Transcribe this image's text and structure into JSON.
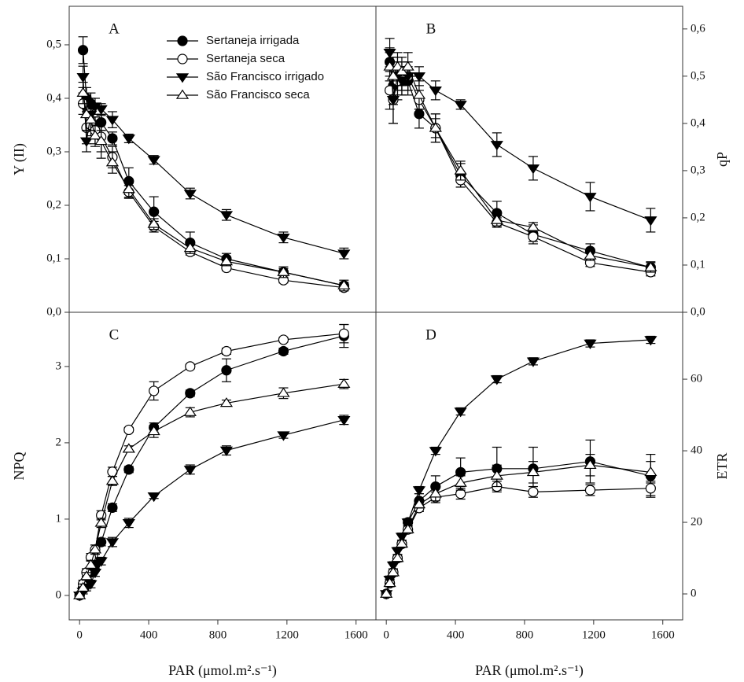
{
  "chart_data": [
    {
      "type": "line",
      "panel_label": "A",
      "ylabel": "Y (II)",
      "yaxis": "left",
      "legend": true,
      "x": [
        20,
        40,
        65,
        90,
        125,
        190,
        285,
        430,
        640,
        850,
        1180,
        1530
      ],
      "xlim": [
        -60,
        1715
      ],
      "ylim": [
        0,
        0.572
      ],
      "yticks": [
        {
          "value": 0,
          "label": "0,0"
        },
        {
          "value": 0.1,
          "label": "0,1"
        },
        {
          "value": 0.2,
          "label": "0,2"
        },
        {
          "value": 0.3,
          "label": "0,3"
        },
        {
          "value": 0.4,
          "label": "0,4"
        },
        {
          "value": 0.5,
          "label": "0,5"
        }
      ],
      "series": [
        {
          "name": "Sertaneja irrigada",
          "color": "#000000",
          "marker": "filled-circle",
          "values": [
            0.49,
            0.4,
            0.39,
            0.35,
            0.355,
            0.325,
            0.245,
            0.188,
            0.13,
            0.1,
            0.075,
            0.05
          ],
          "errors": [
            0.025,
            0.02,
            0.02,
            0.015,
            0.015,
            0.012,
            0.025,
            0.028,
            0.02,
            0.01,
            0.007,
            0.006
          ]
        },
        {
          "name": "Sertaneja seca",
          "color": "#000000",
          "marker": "open-circle",
          "values": [
            0.39,
            0.345,
            0.35,
            0.34,
            0.328,
            0.29,
            0.225,
            0.16,
            0.113,
            0.083,
            0.06,
            0.046
          ],
          "errors": [
            0.02,
            0.03,
            0.02,
            0.025,
            0.04,
            0.02,
            0.012,
            0.01,
            0.006,
            0.005,
            0.005,
            0.005
          ]
        },
        {
          "name": "São Francisco irrigado",
          "color": "#000000",
          "marker": "filled-down",
          "values": [
            0.44,
            0.32,
            0.37,
            0.385,
            0.38,
            0.36,
            0.325,
            0.285,
            0.222,
            0.182,
            0.14,
            0.11
          ],
          "errors": [
            0.02,
            0.02,
            0.03,
            0.015,
            0.01,
            0.015,
            0.008,
            0.008,
            0.01,
            0.01,
            0.01,
            0.01
          ]
        },
        {
          "name": "São Francisco seca",
          "color": "#000000",
          "marker": "open-up",
          "values": [
            0.41,
            0.37,
            0.36,
            0.33,
            0.32,
            0.28,
            0.23,
            0.165,
            0.12,
            0.095,
            0.075,
            0.05
          ],
          "errors": [
            0.02,
            0.03,
            0.02,
            0.02,
            0.02,
            0.02,
            0.015,
            0.01,
            0.01,
            0.008,
            0.01,
            0.01
          ]
        }
      ]
    },
    {
      "type": "line",
      "panel_label": "B",
      "ylabel": "qP",
      "yaxis": "right",
      "x": [
        20,
        40,
        65,
        90,
        125,
        190,
        285,
        430,
        640,
        850,
        1180,
        1530
      ],
      "xlim": [
        -60,
        1715
      ],
      "ylim": [
        0,
        0.648
      ],
      "yticks": [
        {
          "value": 0,
          "label": "0,0"
        },
        {
          "value": 0.1,
          "label": "0,1"
        },
        {
          "value": 0.2,
          "label": "0,2"
        },
        {
          "value": 0.3,
          "label": "0,3"
        },
        {
          "value": 0.4,
          "label": "0,4"
        },
        {
          "value": 0.5,
          "label": "0,5"
        },
        {
          "value": 0.6,
          "label": "0,6"
        }
      ],
      "series": [
        {
          "color": "#000000",
          "marker": "filled-circle",
          "values": [
            0.53,
            0.48,
            0.5,
            0.49,
            0.49,
            0.42,
            0.39,
            0.29,
            0.21,
            0.165,
            0.13,
            0.095
          ],
          "errors": [
            0.03,
            0.04,
            0.03,
            0.03,
            0.03,
            0.03,
            0.03,
            0.025,
            0.025,
            0.02,
            0.015,
            0.012
          ]
        },
        {
          "color": "#000000",
          "marker": "open-circle",
          "values": [
            0.47,
            0.45,
            0.49,
            0.5,
            0.5,
            0.45,
            0.39,
            0.28,
            0.19,
            0.16,
            0.105,
            0.085
          ],
          "errors": [
            0.04,
            0.05,
            0.04,
            0.03,
            0.03,
            0.02,
            0.02,
            0.015,
            0.01,
            0.01,
            0.008,
            0.008
          ]
        },
        {
          "color": "#000000",
          "marker": "filled-down",
          "values": [
            0.55,
            0.45,
            0.5,
            0.49,
            0.5,
            0.5,
            0.47,
            0.44,
            0.355,
            0.305,
            0.245,
            0.195
          ],
          "errors": [
            0.03,
            0.05,
            0.04,
            0.03,
            0.03,
            0.02,
            0.02,
            0.01,
            0.025,
            0.025,
            0.03,
            0.025
          ]
        },
        {
          "color": "#000000",
          "marker": "open-up",
          "values": [
            0.52,
            0.5,
            0.52,
            0.51,
            0.52,
            0.46,
            0.39,
            0.3,
            0.195,
            0.18,
            0.12,
            0.095
          ],
          "errors": [
            0.03,
            0.04,
            0.03,
            0.03,
            0.03,
            0.03,
            0.03,
            0.02,
            0.012,
            0.01,
            0.01,
            0.01
          ]
        }
      ]
    },
    {
      "type": "line",
      "panel_label": "C",
      "ylabel": "NPQ",
      "yaxis": "left",
      "xlabel": "PAR (μmol.m².s⁻¹)",
      "x": [
        0,
        20,
        40,
        65,
        90,
        125,
        190,
        285,
        430,
        640,
        850,
        1180,
        1530
      ],
      "xlim": [
        -60,
        1715
      ],
      "xticks": [
        0,
        400,
        800,
        1200,
        1600
      ],
      "ylim": [
        -0.32,
        3.71
      ],
      "yticks": [
        0,
        1,
        2,
        3
      ],
      "series": [
        {
          "color": "#000000",
          "marker": "filled-circle",
          "values": [
            0,
            0.1,
            0.2,
            0.3,
            0.4,
            0.7,
            1.15,
            1.65,
            2.2,
            2.65,
            2.95,
            3.2,
            3.4
          ],
          "errors": [
            0.02,
            0.03,
            0.04,
            0.05,
            0.05,
            0.05,
            0.05,
            0.04,
            0.06,
            0.04,
            0.15,
            0.04,
            0.15
          ]
        },
        {
          "color": "#000000",
          "marker": "open-circle",
          "values": [
            0,
            0.15,
            0.3,
            0.5,
            0.6,
            1.05,
            1.62,
            2.17,
            2.68,
            3.0,
            3.2,
            3.35,
            3.43
          ],
          "errors": [
            0.02,
            0.05,
            0.05,
            0.05,
            0.06,
            0.06,
            0.06,
            0.03,
            0.12,
            0.03,
            0.04,
            0.03,
            0.12
          ]
        },
        {
          "color": "#000000",
          "marker": "filled-down",
          "values": [
            0,
            0.05,
            0.1,
            0.15,
            0.3,
            0.45,
            0.7,
            0.95,
            1.3,
            1.65,
            1.9,
            2.1,
            2.3
          ],
          "errors": [
            0.02,
            0.03,
            0.04,
            0.05,
            0.05,
            0.05,
            0.06,
            0.06,
            0.03,
            0.06,
            0.06,
            0.04,
            0.06
          ]
        },
        {
          "color": "#000000",
          "marker": "open-up",
          "values": [
            0,
            0.1,
            0.25,
            0.4,
            0.6,
            0.95,
            1.5,
            1.92,
            2.15,
            2.4,
            2.52,
            2.65,
            2.77
          ],
          "errors": [
            0.02,
            0.05,
            0.05,
            0.06,
            0.06,
            0.06,
            0.06,
            0.04,
            0.08,
            0.06,
            0.04,
            0.07,
            0.06
          ]
        }
      ]
    },
    {
      "type": "line",
      "panel_label": "D",
      "ylabel": "ETR",
      "yaxis": "right",
      "xlabel": "PAR (μmol.m².s⁻¹)",
      "x": [
        0,
        20,
        40,
        65,
        90,
        125,
        190,
        285,
        430,
        640,
        850,
        1180,
        1530
      ],
      "xlim": [
        -60,
        1715
      ],
      "xticks": [
        0,
        400,
        800,
        1200,
        1600
      ],
      "ylim": [
        -7.25,
        78.7
      ],
      "yticks": [
        0,
        20,
        40,
        60
      ],
      "series": [
        {
          "color": "#000000",
          "marker": "filled-circle",
          "values": [
            0,
            3,
            6,
            10,
            14,
            20,
            26,
            30,
            34,
            35,
            35,
            37,
            33
          ],
          "errors": [
            0.5,
            1,
            1,
            1,
            1,
            1,
            2,
            3,
            4,
            6,
            6,
            6,
            6
          ]
        },
        {
          "color": "#000000",
          "marker": "open-circle",
          "values": [
            0,
            3,
            6,
            10,
            14,
            18,
            24,
            27,
            28,
            30,
            28.5,
            29,
            29.5
          ],
          "errors": [
            0.5,
            1,
            1,
            1,
            1,
            1,
            1,
            1.5,
            1.5,
            1.5,
            1.5,
            1.5,
            2
          ]
        },
        {
          "color": "#000000",
          "marker": "filled-down",
          "values": [
            0,
            4,
            8,
            12,
            16,
            20,
            29,
            40,
            51,
            60,
            65,
            70,
            71
          ],
          "errors": [
            0.5,
            1,
            1,
            1,
            1,
            1,
            1,
            1,
            1,
            1,
            1,
            1,
            1
          ]
        },
        {
          "color": "#000000",
          "marker": "open-up",
          "values": [
            0,
            3,
            6,
            10,
            14,
            18,
            25,
            28,
            31,
            33,
            34,
            36,
            34
          ],
          "errors": [
            0.5,
            1,
            1,
            1,
            1,
            1,
            1,
            2,
            2,
            3,
            3,
            3,
            3
          ]
        }
      ]
    }
  ]
}
